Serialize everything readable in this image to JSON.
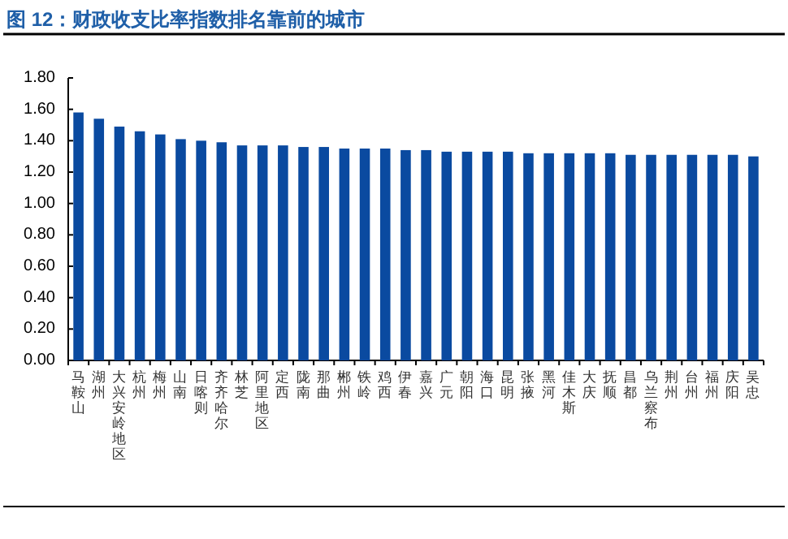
{
  "chart_data": {
    "type": "bar",
    "title": "图 12：财政收支比率指数排名靠前的城市",
    "categories": [
      "马鞍山",
      "湖州",
      "大兴安岭地区",
      "杭州",
      "梅州",
      "山南",
      "日喀则",
      "齐齐哈尔",
      "林芝",
      "阿里地区",
      "定西",
      "陇南",
      "那曲",
      "郴州",
      "铁岭",
      "鸡西",
      "伊春",
      "嘉兴",
      "广元",
      "朝阳",
      "海口",
      "昆明",
      "张掖",
      "黑河",
      "佳木斯",
      "大庆",
      "抚顺",
      "昌都",
      "乌兰察布",
      "荆州",
      "台州",
      "福州",
      "庆阳",
      "吴忠"
    ],
    "values": [
      1.58,
      1.54,
      1.49,
      1.46,
      1.44,
      1.41,
      1.4,
      1.39,
      1.37,
      1.37,
      1.37,
      1.36,
      1.36,
      1.35,
      1.35,
      1.35,
      1.34,
      1.34,
      1.33,
      1.33,
      1.33,
      1.33,
      1.32,
      1.32,
      1.32,
      1.32,
      1.32,
      1.31,
      1.31,
      1.31,
      1.31,
      1.31,
      1.31,
      1.3
    ],
    "color": "#0a4aa0",
    "ylim": [
      0,
      1.8
    ],
    "yticks": [
      {
        "value": 0,
        "label": "0.00"
      },
      {
        "value": 0.2,
        "label": "0.20"
      },
      {
        "value": 0.4,
        "label": "0.40"
      },
      {
        "value": 0.6,
        "label": "0.60"
      },
      {
        "value": 0.8,
        "label": "0.80"
      },
      {
        "value": 1.0,
        "label": "1.00"
      },
      {
        "value": 1.2,
        "label": "1.20"
      },
      {
        "value": 1.4,
        "label": "1.40"
      },
      {
        "value": 1.6,
        "label": "1.60"
      },
      {
        "value": 1.8,
        "label": "1.80"
      }
    ]
  }
}
